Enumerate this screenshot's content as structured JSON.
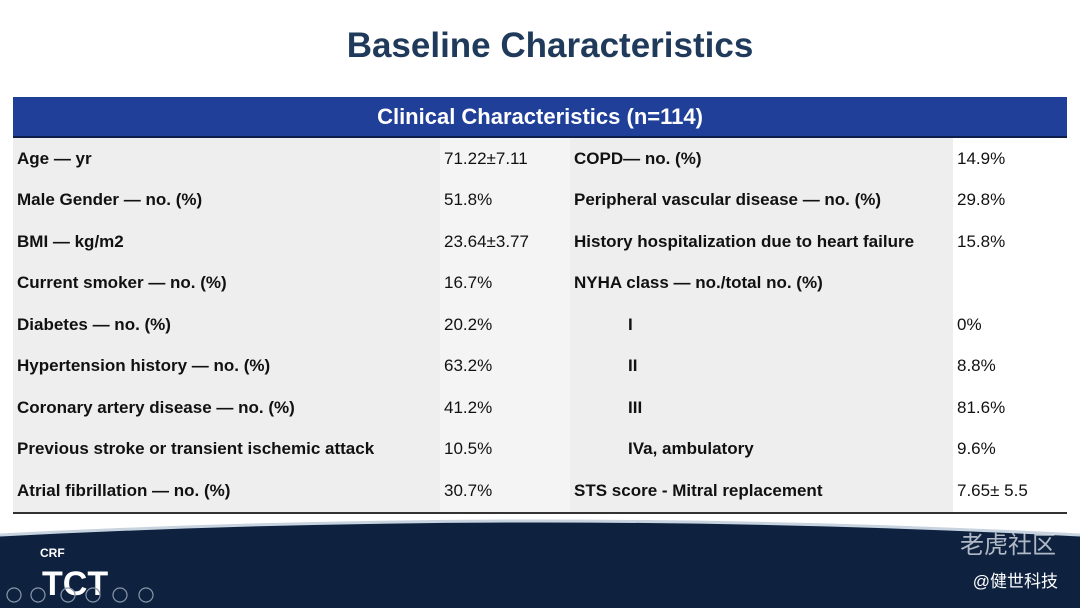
{
  "header": {
    "title": "Baseline Characteristics"
  },
  "table": {
    "caption": "Clinical Characteristics (n=114)",
    "rows": [
      [
        "Age — yr",
        "71.22±7.11",
        "COPD— no. (%)",
        "14.9%"
      ],
      [
        "Male Gender — no. (%)",
        "51.8%",
        "Peripheral vascular disease — no. (%)",
        "29.8%"
      ],
      [
        "BMI — kg/m2",
        "23.64±3.77",
        "History hospitalization due to heart failure",
        "15.8%"
      ],
      [
        "Current smoker — no. (%)",
        "16.7%",
        "NYHA class — no./total no. (%)"
      ],
      [
        "Diabetes — no. (%)",
        "20.2%",
        "I",
        "0%"
      ],
      [
        "Hypertension history — no. (%)",
        "63.2%",
        "II",
        "8.8%"
      ],
      [
        "Coronary artery disease — no. (%)",
        "41.2%",
        "III",
        "81.6%"
      ],
      [
        "Previous stroke or transient ischemic attack",
        "10.5%",
        "IVa, ambulatory",
        "9.6%"
      ],
      [
        "Atrial fibrillation — no. (%)",
        "30.7%",
        "STS score - Mitral replacement",
        "7.65± 5.5"
      ]
    ]
  },
  "footer": {
    "logo_small": "CRF",
    "logo": "TCT",
    "watermark": "老虎社区",
    "credit": "@健世科技"
  }
}
